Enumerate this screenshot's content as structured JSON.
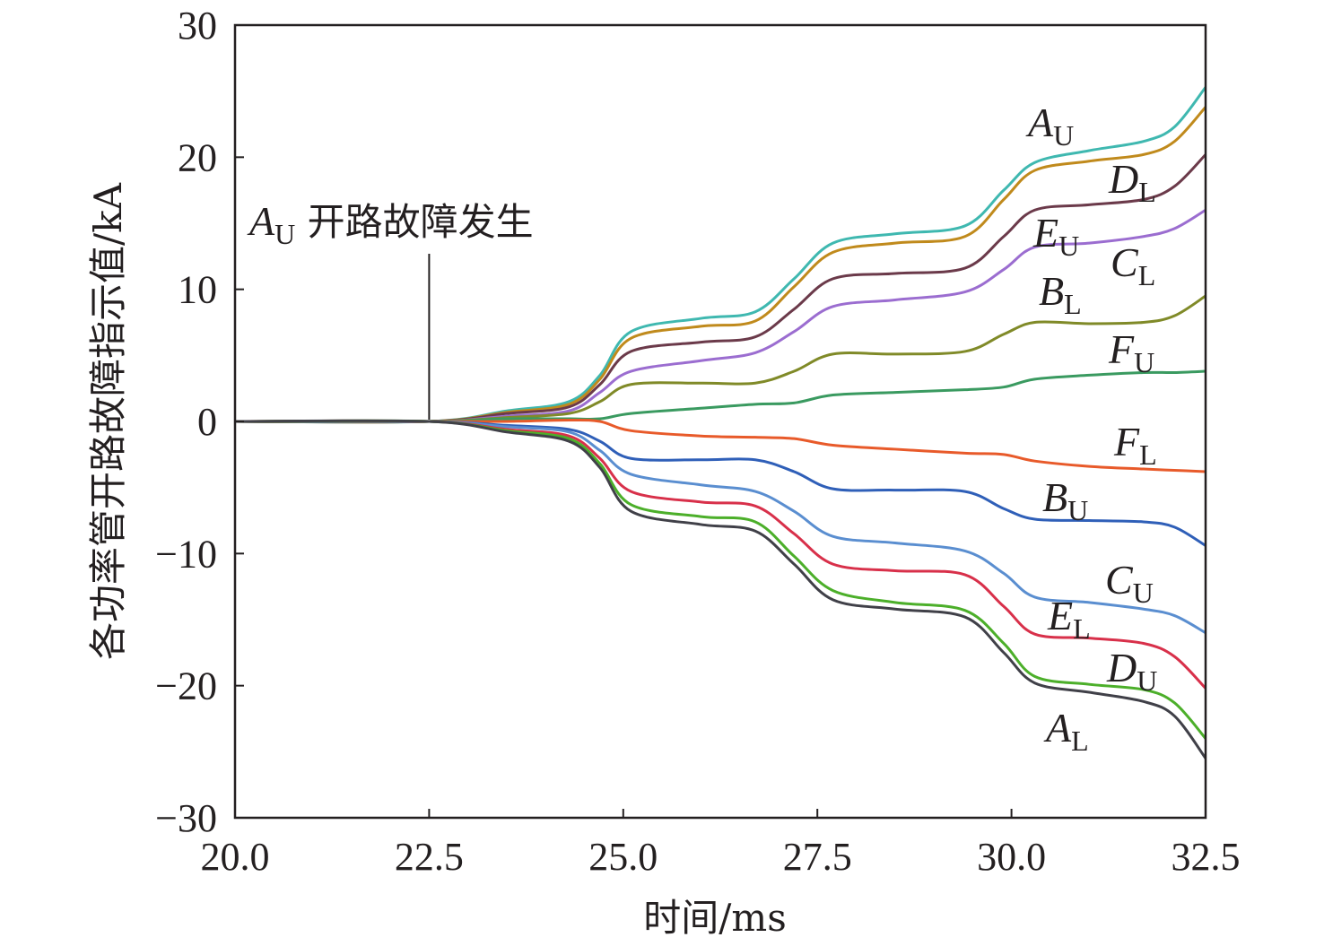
{
  "chart_data": {
    "type": "line",
    "title": "",
    "xlabel": "时间/ms",
    "ylabel": "各功率管开路故障指示值/kA",
    "xlim": [
      20.0,
      32.5
    ],
    "ylim": [
      -30,
      30
    ],
    "xticks": [
      "20.0",
      "22.5",
      "25.0",
      "27.5",
      "30.0",
      "32.5"
    ],
    "xtick_values": [
      20.0,
      22.5,
      25.0,
      27.5,
      30.0,
      32.5
    ],
    "yticks": [
      "30",
      "20",
      "10",
      "0",
      "−10",
      "−20",
      "−30"
    ],
    "ytick_values": [
      30,
      20,
      10,
      0,
      -10,
      -20,
      -30
    ],
    "grid": false,
    "annotation": {
      "main": "A",
      "sub": "U",
      "text": " 开路故障发生",
      "x": 22.5
    },
    "x": [
      20,
      22.5,
      23.5,
      24.3,
      24.7,
      25.1,
      26.0,
      26.7,
      27.2,
      27.7,
      28.5,
      29.4,
      29.9,
      30.3,
      31.0,
      31.7,
      32.1,
      32.5
    ],
    "series": [
      {
        "name": "A_U",
        "main": "A",
        "sub": "U",
        "color": "#3fb8b0",
        "values": [
          0,
          0,
          0.8,
          1.5,
          3.5,
          6.8,
          7.8,
          8.3,
          10.8,
          13.5,
          14.2,
          14.8,
          17.5,
          19.6,
          20.5,
          21.2,
          22.3,
          25.3
        ]
      },
      {
        "name": "D_L",
        "main": "D",
        "sub": "L",
        "color": "#c08a1c",
        "values": [
          0,
          0,
          0.7,
          1.3,
          3.2,
          6.3,
          7.2,
          7.6,
          10.2,
          12.8,
          13.5,
          14.0,
          16.8,
          19.0,
          19.7,
          20.2,
          21.2,
          23.8
        ]
      },
      {
        "name": "E_U",
        "main": "E",
        "sub": "U",
        "color": "#6b3a4a",
        "values": [
          0,
          0,
          0.6,
          1.1,
          2.8,
          5.3,
          6.0,
          6.4,
          8.5,
          10.8,
          11.2,
          11.6,
          14.0,
          16.0,
          16.4,
          16.8,
          17.8,
          20.2
        ]
      },
      {
        "name": "C_L",
        "main": "C",
        "sub": "L",
        "color": "#9b6dd0",
        "values": [
          0,
          0,
          0.4,
          0.8,
          2.2,
          3.8,
          4.6,
          5.2,
          6.8,
          8.7,
          9.2,
          9.8,
          11.5,
          13.2,
          13.5,
          14.0,
          14.6,
          16.0
        ]
      },
      {
        "name": "B_L",
        "main": "B",
        "sub": "L",
        "color": "#808a28",
        "values": [
          0,
          0,
          0.3,
          0.6,
          1.5,
          2.8,
          2.9,
          2.9,
          3.8,
          5.1,
          5.1,
          5.3,
          6.6,
          7.5,
          7.4,
          7.5,
          8.0,
          9.5
        ]
      },
      {
        "name": "F_U",
        "main": "F",
        "sub": "U",
        "color": "#3a9a60",
        "values": [
          0,
          0,
          0.2,
          0.2,
          0.2,
          0.6,
          1.0,
          1.3,
          1.4,
          2.0,
          2.2,
          2.4,
          2.6,
          3.2,
          3.5,
          3.7,
          3.7,
          3.8
        ]
      },
      {
        "name": "F_L",
        "main": "F",
        "sub": "L",
        "color": "#e85a2a",
        "values": [
          0,
          0,
          0,
          0.1,
          0,
          -0.7,
          -1.1,
          -1.2,
          -1.3,
          -1.8,
          -2.1,
          -2.4,
          -2.5,
          -3.0,
          -3.4,
          -3.6,
          -3.7,
          -3.8
        ]
      },
      {
        "name": "B_U",
        "main": "B",
        "sub": "U",
        "color": "#2f5fb8",
        "values": [
          0,
          0,
          -0.3,
          -0.6,
          -1.5,
          -2.8,
          -2.9,
          -2.9,
          -3.8,
          -5.1,
          -5.2,
          -5.3,
          -6.6,
          -7.4,
          -7.5,
          -7.6,
          -8.0,
          -9.4
        ]
      },
      {
        "name": "C_U",
        "main": "C",
        "sub": "U",
        "color": "#5a8ed0",
        "values": [
          0,
          0,
          -0.4,
          -0.8,
          -2.2,
          -4.0,
          -4.8,
          -5.3,
          -6.8,
          -8.7,
          -9.2,
          -9.8,
          -11.5,
          -13.3,
          -13.7,
          -14.2,
          -14.7,
          -16.0
        ]
      },
      {
        "name": "E_L",
        "main": "E",
        "sub": "L",
        "color": "#d8304a",
        "values": [
          0,
          0,
          -0.6,
          -1.1,
          -2.8,
          -5.3,
          -6.1,
          -6.4,
          -8.5,
          -10.8,
          -11.3,
          -11.6,
          -14.0,
          -16.1,
          -16.4,
          -16.8,
          -17.8,
          -20.2
        ]
      },
      {
        "name": "D_U",
        "main": "D",
        "sub": "U",
        "color": "#4caf2a",
        "values": [
          0,
          0,
          -0.7,
          -1.3,
          -3.2,
          -6.3,
          -7.2,
          -7.6,
          -10.2,
          -12.8,
          -13.7,
          -14.3,
          -16.8,
          -19.3,
          -19.9,
          -20.3,
          -21.3,
          -24.0
        ]
      },
      {
        "name": "A_L",
        "main": "A",
        "sub": "L",
        "color": "#404048",
        "values": [
          0,
          0,
          -0.8,
          -1.5,
          -3.5,
          -6.8,
          -7.8,
          -8.3,
          -10.8,
          -13.5,
          -14.2,
          -14.8,
          -17.5,
          -19.8,
          -20.5,
          -21.2,
          -22.3,
          -25.5
        ]
      }
    ]
  }
}
